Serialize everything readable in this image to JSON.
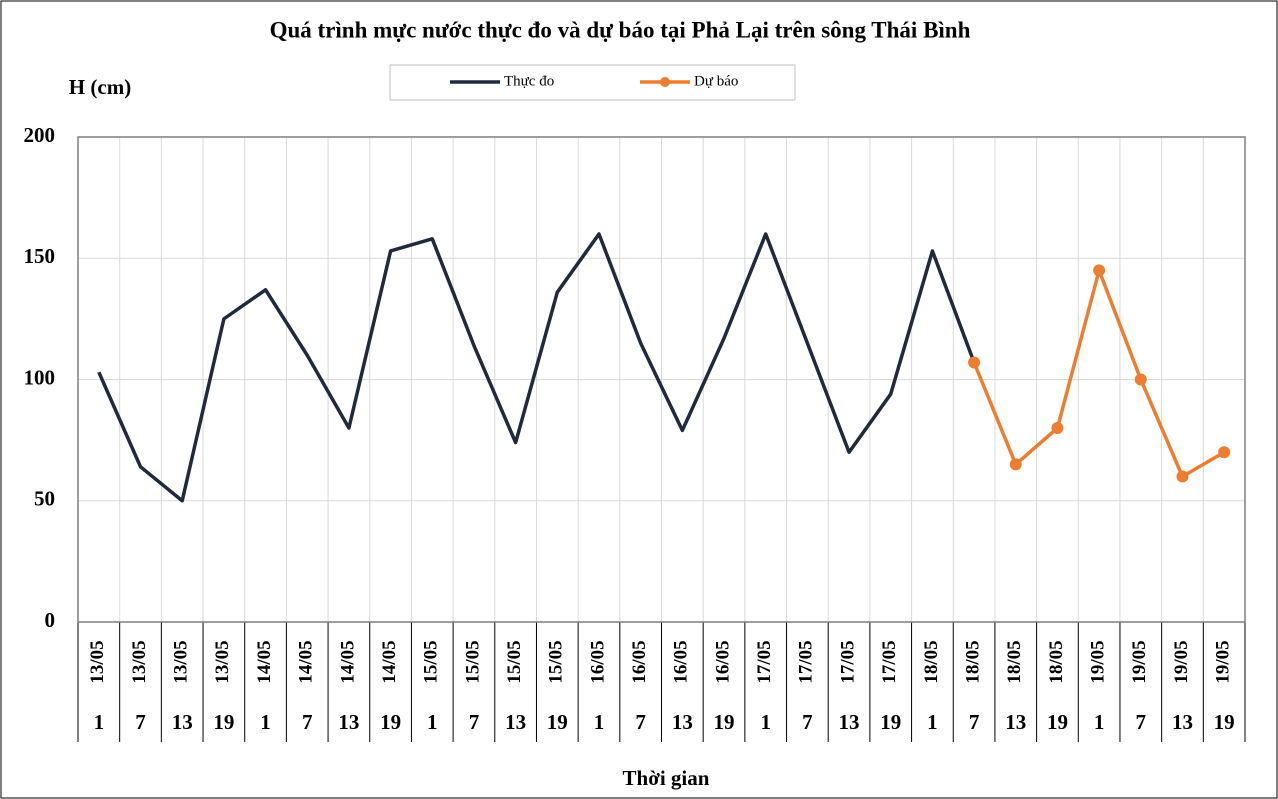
{
  "chart_data": {
    "type": "line",
    "title": "Quá trình mực nước thực đo và dự báo tại Phả Lại trên sông Thái Bình",
    "y_label": "H (cm)",
    "x_label": "Thời gian",
    "dates": [
      "13/05",
      "13/05",
      "13/05",
      "13/05",
      "14/05",
      "14/05",
      "14/05",
      "14/05",
      "15/05",
      "15/05",
      "15/05",
      "15/05",
      "16/05",
      "16/05",
      "16/05",
      "16/05",
      "17/05",
      "17/05",
      "17/05",
      "17/05",
      "18/05",
      "18/05",
      "18/05",
      "18/05",
      "19/05",
      "19/05",
      "19/05",
      "19/05"
    ],
    "hours": [
      "1",
      "7",
      "13",
      "19",
      "1",
      "7",
      "13",
      "19",
      "1",
      "7",
      "13",
      "19",
      "1",
      "7",
      "13",
      "19",
      "1",
      "7",
      "13",
      "19",
      "1",
      "7",
      "13",
      "19",
      "1",
      "7",
      "13",
      "19"
    ],
    "series": [
      {
        "name": "Thực đo",
        "color": "#1f2a3c",
        "markers": false,
        "values": [
          103,
          64,
          50,
          125,
          137,
          110,
          80,
          153,
          158,
          114,
          74,
          136,
          160,
          115,
          79,
          117,
          160,
          115,
          70,
          94,
          153,
          107,
          null,
          null,
          null,
          null,
          null,
          null
        ]
      },
      {
        "name": "Dự báo",
        "color": "#ed7d31",
        "markers": true,
        "values": [
          null,
          null,
          null,
          null,
          null,
          null,
          null,
          null,
          null,
          null,
          null,
          null,
          null,
          null,
          null,
          null,
          null,
          null,
          null,
          null,
          null,
          107,
          65,
          80,
          145,
          100,
          60,
          70
        ]
      }
    ],
    "ylim": [
      0,
      200
    ],
    "yticks": [
      0,
      50,
      100,
      150,
      200
    ],
    "grid": true
  }
}
